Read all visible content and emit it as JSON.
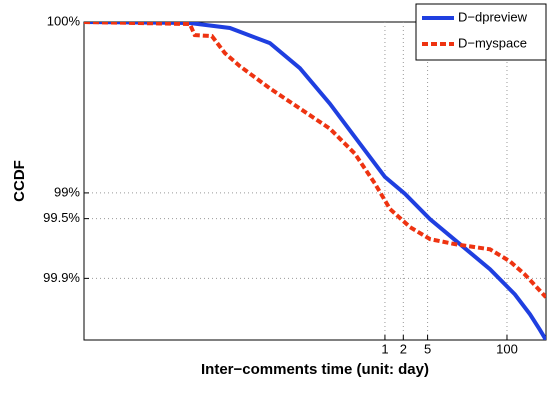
{
  "chart_data": {
    "type": "line",
    "xlabel": "Inter−comments time (unit: day)",
    "ylabel": "CCDF",
    "xscale": "log",
    "yscale": "log-complement",
    "xlim": [
      1.17e-05,
      436
    ],
    "ylim": [
      99.981,
      0
    ],
    "xticks": [
      1,
      2,
      5,
      100
    ],
    "yticks": [
      {
        "value": 0,
        "label": "100%"
      },
      {
        "value": 99,
        "label": "99%"
      },
      {
        "value": 99.5,
        "label": "99.5%"
      },
      {
        "value": 99.9,
        "label": "99.9%"
      }
    ],
    "grid": true,
    "legend": "upper right",
    "series": [
      {
        "name": "D−dpreview",
        "color": "#1f3fe0",
        "style": "solid",
        "x": [
          1.17e-05,
          0.000635,
          0.00288,
          0.013,
          0.0404,
          0.125,
          0.389,
          1,
          2.13,
          5.47,
          17,
          52.7,
          135,
          238,
          347,
          436
        ],
        "values": [
          0,
          2.7,
          15,
          43.4,
          71.2,
          88.9,
          96.23,
          98.46,
          99.027,
          99.506,
          99.749,
          99.872,
          99.935,
          99.962,
          99.975,
          99.981
        ]
      },
      {
        "name": "D−myspace",
        "color": "#ee3311",
        "style": "dashed",
        "x": [
          1.17e-05,
          0.000635,
          0.000767,
          0.00146,
          0.00238,
          0.0042,
          0.013,
          0.0404,
          0.125,
          0.322,
          0.686,
          1.21,
          2.57,
          5.47,
          14.1,
          52.7,
          112,
          197,
          436
        ],
        "values": [
          0,
          5.3,
          29.7,
          31.6,
          56.8,
          69.6,
          83.3,
          90.27,
          94.34,
          97.12,
          98.72,
          99.351,
          99.602,
          99.712,
          99.749,
          99.781,
          99.842,
          99.889,
          99.94
        ]
      }
    ]
  }
}
